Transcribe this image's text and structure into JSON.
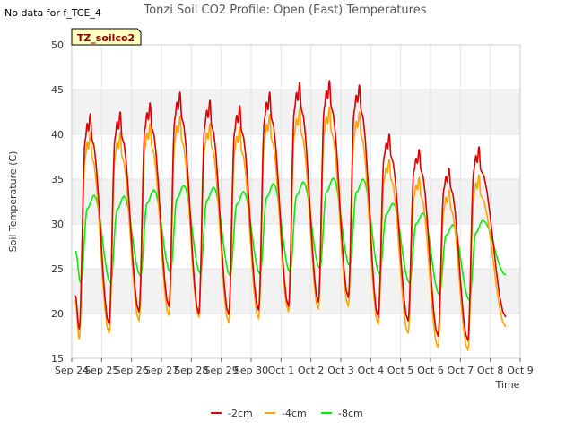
{
  "header": {
    "no_data_text": "No data for f_TCE_4",
    "title": "Tonzi Soil CO2 Profile: Open (East) Temperatures",
    "badge": "TZ_soilco2"
  },
  "chart_data": {
    "type": "line",
    "title": "Tonzi Soil CO2 Profile: Open (East) Temperatures",
    "xlabel": "Time",
    "ylabel": "Soil Temperature (C)",
    "ylim": [
      15,
      50
    ],
    "yticks": [
      15,
      20,
      25,
      30,
      35,
      40,
      45,
      50
    ],
    "xlim": [
      "Sep 24",
      "Oct 9"
    ],
    "xticks": [
      "Sep 24",
      "Sep 25",
      "Sep 26",
      "Sep 27",
      "Sep 28",
      "Sep 29",
      "Sep 30",
      "Oct 1",
      "Oct 2",
      "Oct 3",
      "Oct 4",
      "Oct 5",
      "Oct 6",
      "Oct 7",
      "Oct 8",
      "Oct 9"
    ],
    "grid": true,
    "legend_position": "bottom",
    "series": [
      {
        "name": "-2cm",
        "color": "#dd0000",
        "mins": [
          18.3,
          18.8,
          20.2,
          20.8,
          20.0,
          19.9,
          20.4,
          20.8,
          21.3,
          21.8,
          19.6,
          19.2,
          17.5,
          17.0
        ],
        "maxs": [
          42.3,
          42.5,
          43.5,
          44.7,
          43.8,
          43.2,
          44.7,
          45.8,
          46.0,
          45.5,
          40.0,
          38.3,
          36.2,
          38.6
        ],
        "start": 22.0,
        "end": 19.6
      },
      {
        "name": "-4cm",
        "color": "#ffa500",
        "mins": [
          17.2,
          17.8,
          19.2,
          19.8,
          19.6,
          19.0,
          19.4,
          20.2,
          20.5,
          20.8,
          18.8,
          17.8,
          16.2,
          15.9
        ],
        "maxs": [
          40.2,
          40.2,
          41.2,
          42.0,
          41.2,
          40.8,
          42.2,
          42.8,
          43.0,
          42.5,
          37.2,
          35.2,
          33.8,
          35.5
        ],
        "start": 21.5,
        "end": 18.5
      },
      {
        "name": "-8cm",
        "color": "#00ee00",
        "mins": [
          23.4,
          23.4,
          24.2,
          24.6,
          24.5,
          24.2,
          24.4,
          24.6,
          25.0,
          25.3,
          24.4,
          23.4,
          22.1,
          21.5
        ],
        "maxs": [
          33.2,
          33.1,
          33.8,
          34.3,
          34.1,
          33.6,
          34.5,
          34.7,
          35.1,
          35.0,
          32.3,
          31.2,
          29.9,
          30.4
        ],
        "start": 27.0,
        "end": 24.3
      }
    ]
  }
}
